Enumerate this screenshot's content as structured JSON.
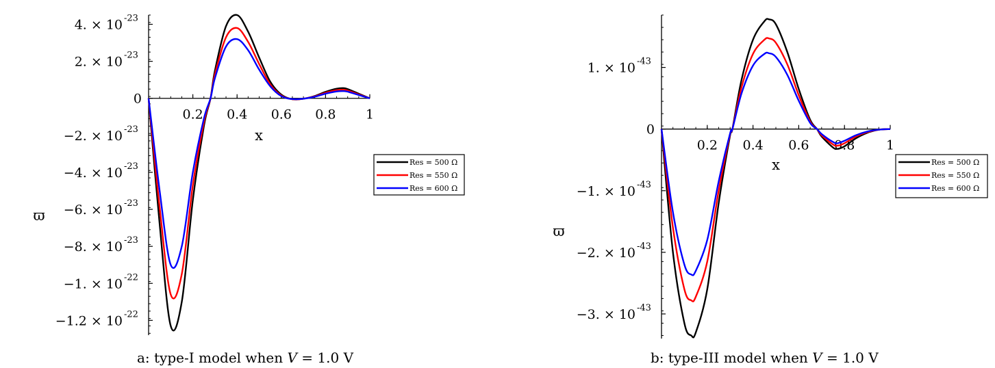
{
  "chart_data": [
    {
      "type": "line",
      "xlabel": "x",
      "ylabel": "ϖ",
      "xlim": [
        0,
        1
      ],
      "x_ticks": [
        "0.2",
        "0.4",
        "0.6",
        "0.8",
        "1"
      ],
      "y_ticks": [
        {
          "value": 4e-23,
          "mantissa": "4.",
          "exponent": "-23"
        },
        {
          "value": 2e-23,
          "mantissa": "2.",
          "exponent": "-23"
        },
        {
          "value": 0,
          "mantissa": "0",
          "exponent": ""
        },
        {
          "value": -2e-23,
          "mantissa": "−2.",
          "exponent": "-23"
        },
        {
          "value": -4e-23,
          "mantissa": "−4.",
          "exponent": "-23"
        },
        {
          "value": -6e-23,
          "mantissa": "−6.",
          "exponent": "-23"
        },
        {
          "value": -8e-23,
          "mantissa": "−8.",
          "exponent": "-23"
        },
        {
          "value": -1e-22,
          "mantissa": "−1.",
          "exponent": "-22"
        },
        {
          "value": -1.2e-22,
          "mantissa": "−1.2",
          "exponent": "-22"
        }
      ],
      "ylim": [
        -1.28e-22,
        4.5e-23
      ],
      "legend_position": "right",
      "series": [
        {
          "name": "Res = 500 Ω",
          "color": "#000000",
          "x": [
            0,
            0.05,
            0.1,
            0.15,
            0.2,
            0.25,
            0.28,
            0.3,
            0.35,
            0.4,
            0.45,
            0.5,
            0.55,
            0.6,
            0.65,
            0.7,
            0.75,
            0.8,
            0.85,
            0.88,
            0.9,
            0.95,
            1
          ],
          "y": [
            0,
            -6.8e-23,
            -1.23e-22,
            -1.1e-22,
            -5.5e-23,
            -1.5e-23,
            0,
            1.5e-23,
            3.9e-23,
            4.5e-23,
            3.6e-23,
            2.2e-23,
            9e-24,
            2e-24,
            -5e-25,
            -2e-25,
            1.2e-24,
            3.5e-24,
            5.2e-24,
            5.5e-24,
            5e-24,
            2.5e-24,
            0
          ]
        },
        {
          "name": "Res = 550 Ω",
          "color": "#ff0000",
          "x": [
            0,
            0.05,
            0.1,
            0.15,
            0.2,
            0.25,
            0.28,
            0.3,
            0.35,
            0.4,
            0.45,
            0.5,
            0.55,
            0.6,
            0.65,
            0.7,
            0.75,
            0.8,
            0.85,
            0.88,
            0.9,
            0.95,
            1
          ],
          "y": [
            0,
            -5.9e-23,
            -1.06e-22,
            -9.5e-23,
            -4.7e-23,
            -1.3e-23,
            0,
            1.3e-23,
            3.3e-23,
            3.8e-23,
            3.05e-23,
            1.85e-23,
            7.5e-24,
            1.5e-24,
            -5e-25,
            -2e-25,
            1e-24,
            3e-24,
            4.4e-24,
            4.6e-24,
            4.2e-24,
            2.1e-24,
            0
          ]
        },
        {
          "name": "Res = 600 Ω",
          "color": "#0000ff",
          "x": [
            0,
            0.05,
            0.1,
            0.15,
            0.2,
            0.25,
            0.28,
            0.3,
            0.35,
            0.4,
            0.45,
            0.5,
            0.55,
            0.6,
            0.65,
            0.7,
            0.75,
            0.8,
            0.85,
            0.88,
            0.9,
            0.95,
            1
          ],
          "y": [
            0,
            -5e-23,
            -9e-23,
            -8e-23,
            -4e-23,
            -1.1e-23,
            0,
            1.1e-23,
            2.8e-23,
            3.2e-23,
            2.6e-23,
            1.55e-23,
            6.5e-24,
            1.2e-24,
            -4e-25,
            -2e-25,
            8e-25,
            2.5e-24,
            3.7e-24,
            3.9e-24,
            3.6e-24,
            1.8e-24,
            0
          ]
        }
      ]
    },
    {
      "type": "line",
      "xlabel": "x",
      "ylabel": "ϖ",
      "xlim": [
        0,
        1
      ],
      "x_ticks": [
        "0.2",
        "0.4",
        "0.6",
        "0.8",
        "1"
      ],
      "y_ticks": [
        {
          "value": 1e-43,
          "mantissa": "1.",
          "exponent": "-43"
        },
        {
          "value": 0,
          "mantissa": "0",
          "exponent": ""
        },
        {
          "value": -1e-43,
          "mantissa": "−1.",
          "exponent": "-43"
        },
        {
          "value": -2e-43,
          "mantissa": "−2.",
          "exponent": "-43"
        },
        {
          "value": -3e-43,
          "mantissa": "−3.",
          "exponent": "-43"
        }
      ],
      "ylim": [
        -3.4e-43,
        1.85e-43
      ],
      "legend_position": "right",
      "series": [
        {
          "name": "Res = 500 Ω",
          "color": "#000000",
          "x": [
            0,
            0.05,
            0.1,
            0.13,
            0.15,
            0.2,
            0.25,
            0.3,
            0.31,
            0.35,
            0.4,
            0.45,
            0.47,
            0.5,
            0.55,
            0.6,
            0.65,
            0.68,
            0.7,
            0.75,
            0.77,
            0.8,
            0.85,
            0.9,
            0.95,
            1
          ],
          "y": [
            0,
            -2e-43,
            -3.15e-43,
            -3.35e-43,
            -3.3e-43,
            -2.6e-43,
            -1.2e-43,
            -1e-44,
            0,
            8e-44,
            1.45e-43,
            1.75e-43,
            1.78e-43,
            1.7e-43,
            1.25e-43,
            6.5e-44,
            1.5e-44,
            0,
            -1.2e-44,
            -3e-44,
            -3.2e-44,
            -2.8e-44,
            -1.5e-44,
            -6e-45,
            -1e-45,
            0
          ]
        },
        {
          "name": "Res = 550 Ω",
          "color": "#ff0000",
          "x": [
            0,
            0.05,
            0.1,
            0.13,
            0.15,
            0.2,
            0.25,
            0.3,
            0.31,
            0.35,
            0.4,
            0.45,
            0.47,
            0.5,
            0.55,
            0.6,
            0.65,
            0.68,
            0.7,
            0.75,
            0.77,
            0.8,
            0.85,
            0.9,
            0.95,
            1
          ],
          "y": [
            0,
            -1.6e-43,
            -2.6e-43,
            -2.78e-43,
            -2.72e-43,
            -2.15e-43,
            -1e-43,
            -8e-45,
            0,
            6.8e-44,
            1.22e-43,
            1.45e-43,
            1.47e-43,
            1.4e-43,
            1.05e-43,
            5.5e-44,
            1.2e-44,
            0,
            -1e-44,
            -2.5e-44,
            -2.7e-44,
            -2.3e-44,
            -1.2e-44,
            -5e-45,
            -1e-45,
            0
          ]
        },
        {
          "name": "Res = 600 Ω",
          "color": "#0000ff",
          "x": [
            0,
            0.05,
            0.1,
            0.13,
            0.15,
            0.2,
            0.25,
            0.3,
            0.31,
            0.35,
            0.4,
            0.45,
            0.47,
            0.5,
            0.55,
            0.6,
            0.65,
            0.68,
            0.7,
            0.75,
            0.77,
            0.8,
            0.85,
            0.9,
            0.95,
            1
          ],
          "y": [
            0,
            -1.35e-43,
            -2.2e-43,
            -2.36e-43,
            -2.3e-43,
            -1.8e-43,
            -8.5e-44,
            -7e-45,
            0,
            5.8e-44,
            1.03e-43,
            1.22e-43,
            1.23e-43,
            1.17e-43,
            8.8e-44,
            4.6e-44,
            1e-44,
            0,
            -8e-45,
            -2.1e-44,
            -2.3e-44,
            -1.9e-44,
            -1e-44,
            -4e-45,
            -1e-45,
            0
          ]
        }
      ]
    }
  ],
  "captions": [
    {
      "prefix": "a: type-I model when ",
      "var": "V",
      "rest": " = 1.0 V"
    },
    {
      "prefix": "b: type-III model when ",
      "var": "V",
      "rest": " = 1.0 V"
    }
  ]
}
